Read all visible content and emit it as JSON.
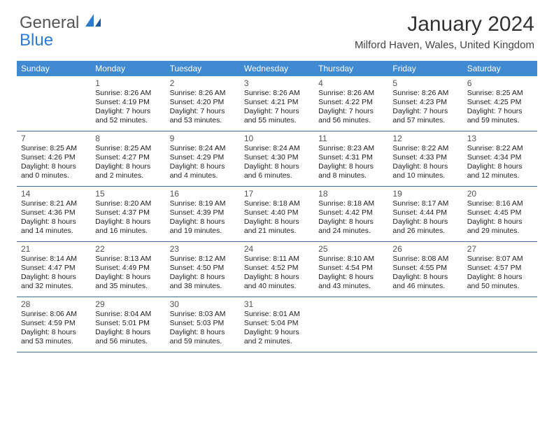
{
  "logo": {
    "line1": "General",
    "line2": "Blue"
  },
  "title": "January 2024",
  "location": "Milford Haven, Wales, United Kingdom",
  "colors": {
    "header_bg": "#3f8ad1",
    "week_border": "#3f6a9a",
    "text_dark": "#222222",
    "text_muted": "#555555",
    "logo_gray": "#555555",
    "logo_blue": "#2e7cd1",
    "background": "#ffffff"
  },
  "typography": {
    "title_fontsize": 30,
    "location_fontsize": 15,
    "dayheader_fontsize": 12,
    "daynum_fontsize": 12,
    "info_fontsize": 10.5
  },
  "layout": {
    "columns": 7,
    "rows": 5,
    "start_offset": 1
  },
  "day_names": [
    "Sunday",
    "Monday",
    "Tuesday",
    "Wednesday",
    "Thursday",
    "Friday",
    "Saturday"
  ],
  "days": [
    {
      "n": "1",
      "sunrise": "Sunrise: 8:26 AM",
      "sunset": "Sunset: 4:19 PM",
      "d1": "Daylight: 7 hours",
      "d2": "and 52 minutes."
    },
    {
      "n": "2",
      "sunrise": "Sunrise: 8:26 AM",
      "sunset": "Sunset: 4:20 PM",
      "d1": "Daylight: 7 hours",
      "d2": "and 53 minutes."
    },
    {
      "n": "3",
      "sunrise": "Sunrise: 8:26 AM",
      "sunset": "Sunset: 4:21 PM",
      "d1": "Daylight: 7 hours",
      "d2": "and 55 minutes."
    },
    {
      "n": "4",
      "sunrise": "Sunrise: 8:26 AM",
      "sunset": "Sunset: 4:22 PM",
      "d1": "Daylight: 7 hours",
      "d2": "and 56 minutes."
    },
    {
      "n": "5",
      "sunrise": "Sunrise: 8:26 AM",
      "sunset": "Sunset: 4:23 PM",
      "d1": "Daylight: 7 hours",
      "d2": "and 57 minutes."
    },
    {
      "n": "6",
      "sunrise": "Sunrise: 8:25 AM",
      "sunset": "Sunset: 4:25 PM",
      "d1": "Daylight: 7 hours",
      "d2": "and 59 minutes."
    },
    {
      "n": "7",
      "sunrise": "Sunrise: 8:25 AM",
      "sunset": "Sunset: 4:26 PM",
      "d1": "Daylight: 8 hours",
      "d2": "and 0 minutes."
    },
    {
      "n": "8",
      "sunrise": "Sunrise: 8:25 AM",
      "sunset": "Sunset: 4:27 PM",
      "d1": "Daylight: 8 hours",
      "d2": "and 2 minutes."
    },
    {
      "n": "9",
      "sunrise": "Sunrise: 8:24 AM",
      "sunset": "Sunset: 4:29 PM",
      "d1": "Daylight: 8 hours",
      "d2": "and 4 minutes."
    },
    {
      "n": "10",
      "sunrise": "Sunrise: 8:24 AM",
      "sunset": "Sunset: 4:30 PM",
      "d1": "Daylight: 8 hours",
      "d2": "and 6 minutes."
    },
    {
      "n": "11",
      "sunrise": "Sunrise: 8:23 AM",
      "sunset": "Sunset: 4:31 PM",
      "d1": "Daylight: 8 hours",
      "d2": "and 8 minutes."
    },
    {
      "n": "12",
      "sunrise": "Sunrise: 8:22 AM",
      "sunset": "Sunset: 4:33 PM",
      "d1": "Daylight: 8 hours",
      "d2": "and 10 minutes."
    },
    {
      "n": "13",
      "sunrise": "Sunrise: 8:22 AM",
      "sunset": "Sunset: 4:34 PM",
      "d1": "Daylight: 8 hours",
      "d2": "and 12 minutes."
    },
    {
      "n": "14",
      "sunrise": "Sunrise: 8:21 AM",
      "sunset": "Sunset: 4:36 PM",
      "d1": "Daylight: 8 hours",
      "d2": "and 14 minutes."
    },
    {
      "n": "15",
      "sunrise": "Sunrise: 8:20 AM",
      "sunset": "Sunset: 4:37 PM",
      "d1": "Daylight: 8 hours",
      "d2": "and 16 minutes."
    },
    {
      "n": "16",
      "sunrise": "Sunrise: 8:19 AM",
      "sunset": "Sunset: 4:39 PM",
      "d1": "Daylight: 8 hours",
      "d2": "and 19 minutes."
    },
    {
      "n": "17",
      "sunrise": "Sunrise: 8:18 AM",
      "sunset": "Sunset: 4:40 PM",
      "d1": "Daylight: 8 hours",
      "d2": "and 21 minutes."
    },
    {
      "n": "18",
      "sunrise": "Sunrise: 8:18 AM",
      "sunset": "Sunset: 4:42 PM",
      "d1": "Daylight: 8 hours",
      "d2": "and 24 minutes."
    },
    {
      "n": "19",
      "sunrise": "Sunrise: 8:17 AM",
      "sunset": "Sunset: 4:44 PM",
      "d1": "Daylight: 8 hours",
      "d2": "and 26 minutes."
    },
    {
      "n": "20",
      "sunrise": "Sunrise: 8:16 AM",
      "sunset": "Sunset: 4:45 PM",
      "d1": "Daylight: 8 hours",
      "d2": "and 29 minutes."
    },
    {
      "n": "21",
      "sunrise": "Sunrise: 8:14 AM",
      "sunset": "Sunset: 4:47 PM",
      "d1": "Daylight: 8 hours",
      "d2": "and 32 minutes."
    },
    {
      "n": "22",
      "sunrise": "Sunrise: 8:13 AM",
      "sunset": "Sunset: 4:49 PM",
      "d1": "Daylight: 8 hours",
      "d2": "and 35 minutes."
    },
    {
      "n": "23",
      "sunrise": "Sunrise: 8:12 AM",
      "sunset": "Sunset: 4:50 PM",
      "d1": "Daylight: 8 hours",
      "d2": "and 38 minutes."
    },
    {
      "n": "24",
      "sunrise": "Sunrise: 8:11 AM",
      "sunset": "Sunset: 4:52 PM",
      "d1": "Daylight: 8 hours",
      "d2": "and 40 minutes."
    },
    {
      "n": "25",
      "sunrise": "Sunrise: 8:10 AM",
      "sunset": "Sunset: 4:54 PM",
      "d1": "Daylight: 8 hours",
      "d2": "and 43 minutes."
    },
    {
      "n": "26",
      "sunrise": "Sunrise: 8:08 AM",
      "sunset": "Sunset: 4:55 PM",
      "d1": "Daylight: 8 hours",
      "d2": "and 46 minutes."
    },
    {
      "n": "27",
      "sunrise": "Sunrise: 8:07 AM",
      "sunset": "Sunset: 4:57 PM",
      "d1": "Daylight: 8 hours",
      "d2": "and 50 minutes."
    },
    {
      "n": "28",
      "sunrise": "Sunrise: 8:06 AM",
      "sunset": "Sunset: 4:59 PM",
      "d1": "Daylight: 8 hours",
      "d2": "and 53 minutes."
    },
    {
      "n": "29",
      "sunrise": "Sunrise: 8:04 AM",
      "sunset": "Sunset: 5:01 PM",
      "d1": "Daylight: 8 hours",
      "d2": "and 56 minutes."
    },
    {
      "n": "30",
      "sunrise": "Sunrise: 8:03 AM",
      "sunset": "Sunset: 5:03 PM",
      "d1": "Daylight: 8 hours",
      "d2": "and 59 minutes."
    },
    {
      "n": "31",
      "sunrise": "Sunrise: 8:01 AM",
      "sunset": "Sunset: 5:04 PM",
      "d1": "Daylight: 9 hours",
      "d2": "and 2 minutes."
    }
  ]
}
